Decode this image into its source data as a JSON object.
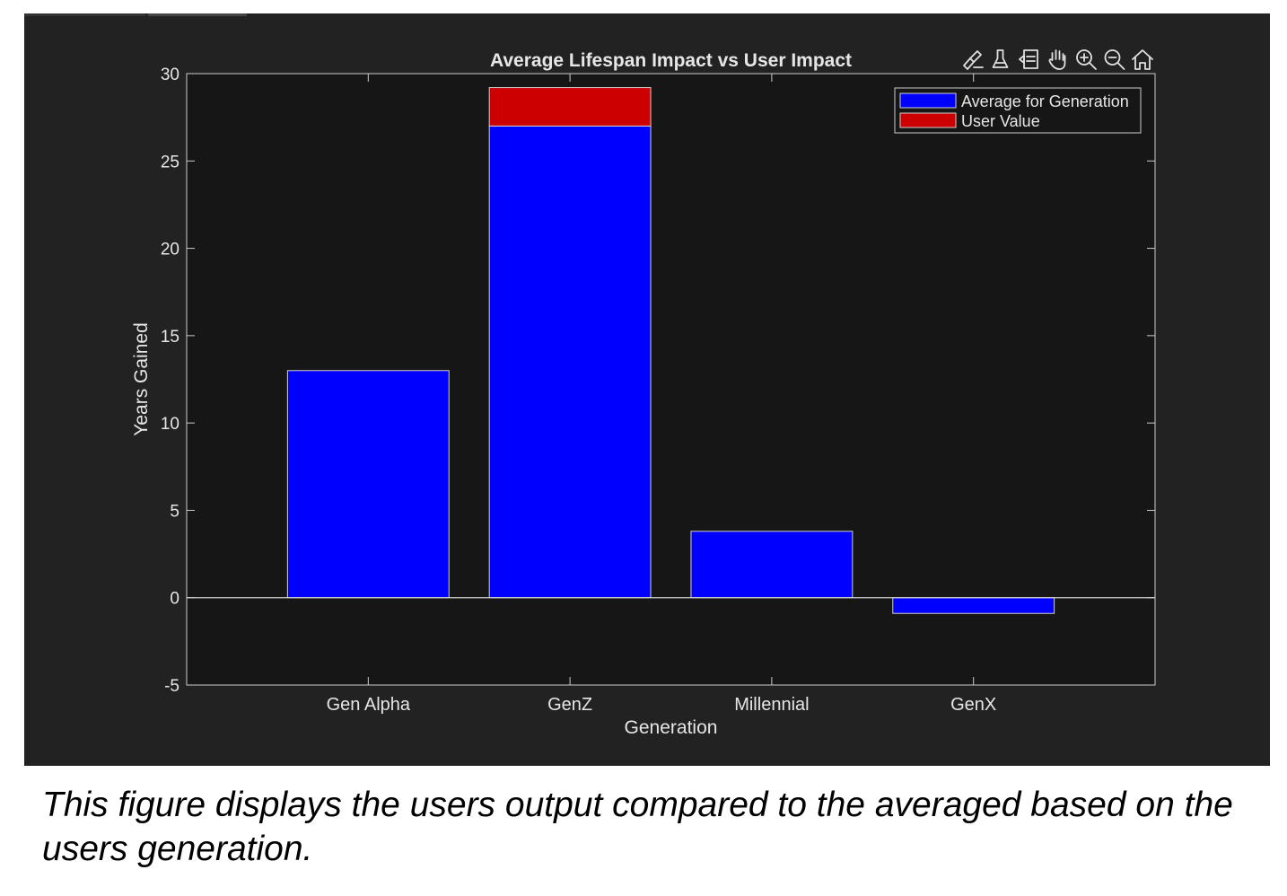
{
  "figure": {
    "background": "#222222",
    "axes_background": "#161616",
    "axis_color": "#cccccc",
    "text_color": "#e6e6e6"
  },
  "toolbar": {
    "icons": [
      "brush-icon",
      "data-tips-icon",
      "datacursor-icon",
      "pan-hand-icon",
      "zoom-in-icon",
      "zoom-out-icon",
      "home-icon"
    ]
  },
  "chart_data": {
    "type": "bar",
    "stacked": true,
    "title": "Average Lifespan Impact vs User Impact",
    "xlabel": "Generation",
    "ylabel": "Years Gained",
    "categories": [
      "Gen Alpha",
      "GenZ",
      "Millennial",
      "GenX"
    ],
    "series": [
      {
        "name": "Average for Generation",
        "color": "#0000ff",
        "values": [
          13,
          27,
          3.8,
          -0.9
        ]
      },
      {
        "name": "User Value",
        "color": "#cc0000",
        "values": [
          0,
          2.2,
          0,
          0
        ]
      }
    ],
    "ylim": [
      -5,
      30
    ],
    "yticks": [
      "-5",
      "0",
      "5",
      "10",
      "15",
      "20",
      "25",
      "30"
    ],
    "grid": false,
    "legend_position": "top-right"
  },
  "caption": "This figure displays the users output compared to the averaged based on the users generation."
}
